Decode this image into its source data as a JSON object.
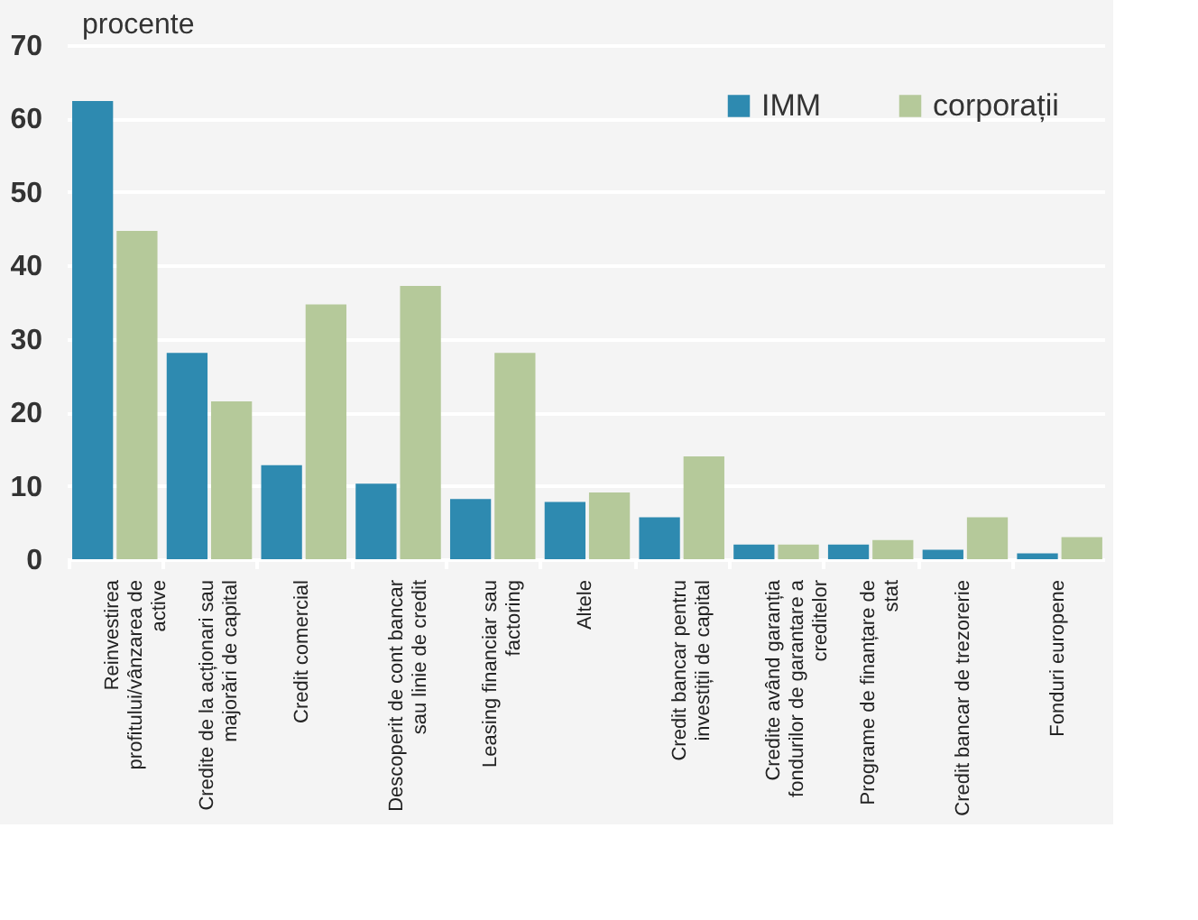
{
  "chart_data": {
    "type": "bar",
    "ylabel": "procente",
    "categories": [
      "Reinvestirea profitului/vânzarea de active",
      "Credite de la acționari sau majorări de capital",
      "Credit comercial",
      "Descoperit de cont bancar sau linie de credit",
      "Leasing financiar sau factoring",
      "Altele",
      "Credit bancar pentru investiții de capital",
      "Credite având garanția fondurilor de garantare a creditelor",
      "Programe de finanțare de stat",
      "Credit bancar de trezorerie",
      "Fonduri europene"
    ],
    "series": [
      {
        "name": "IMM",
        "color": "#2e8ab0",
        "values": [
          62.4,
          28.1,
          12.8,
          10.3,
          8.2,
          7.8,
          5.7,
          2.0,
          2.0,
          1.3,
          0.8
        ]
      },
      {
        "name": "corporații",
        "color": "#b5c99a",
        "values": [
          44.7,
          21.5,
          34.7,
          37.2,
          28.1,
          9.1,
          14.0,
          2.0,
          2.6,
          5.7,
          3.0
        ]
      }
    ],
    "ylim": [
      0,
      70
    ],
    "yticks": [
      0,
      10,
      20,
      30,
      40,
      50,
      60,
      70
    ],
    "grid": "y",
    "legend": "top right"
  }
}
